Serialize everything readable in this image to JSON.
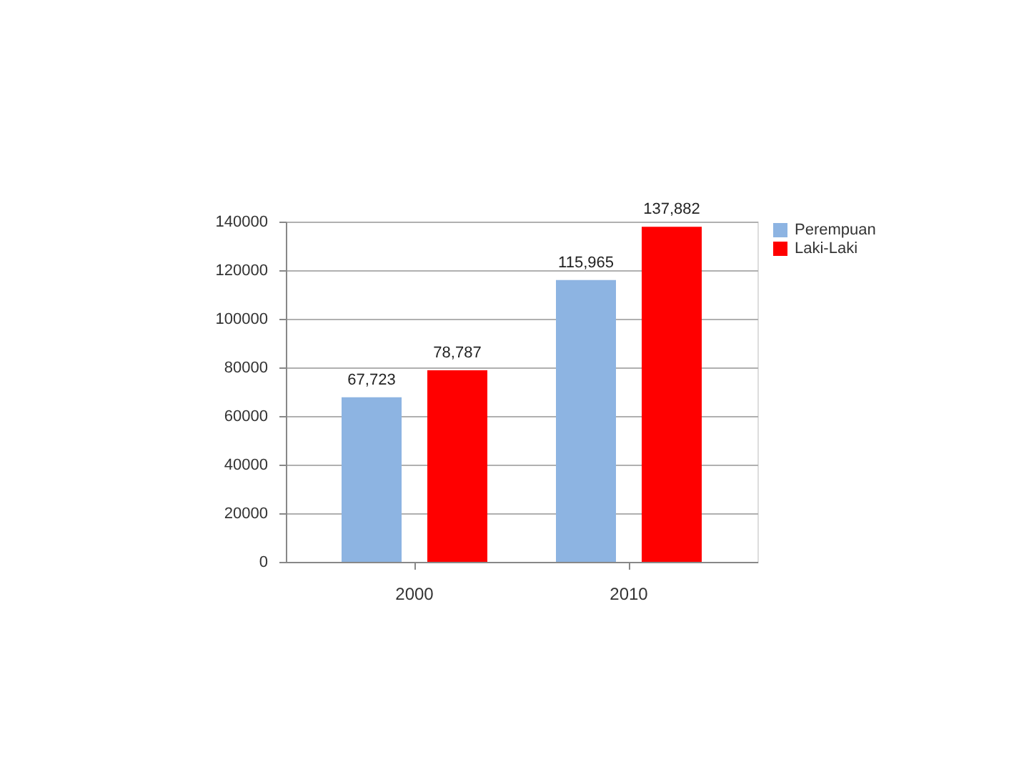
{
  "chart_data": {
    "type": "bar",
    "categories": [
      "2000",
      "2010"
    ],
    "series": [
      {
        "name": "Perempuan",
        "color": "#8db4e2",
        "values": [
          67723,
          115965
        ],
        "value_labels": [
          "67,723",
          "115,965"
        ]
      },
      {
        "name": "Laki-Laki",
        "color": "#ff0000",
        "values": [
          78787,
          137882
        ],
        "value_labels": [
          "78,787",
          "137,882"
        ]
      }
    ],
    "ylim": [
      0,
      140000
    ],
    "yticks": [
      0,
      20000,
      40000,
      60000,
      80000,
      100000,
      120000,
      140000
    ],
    "grid": "y",
    "legend": "right"
  }
}
